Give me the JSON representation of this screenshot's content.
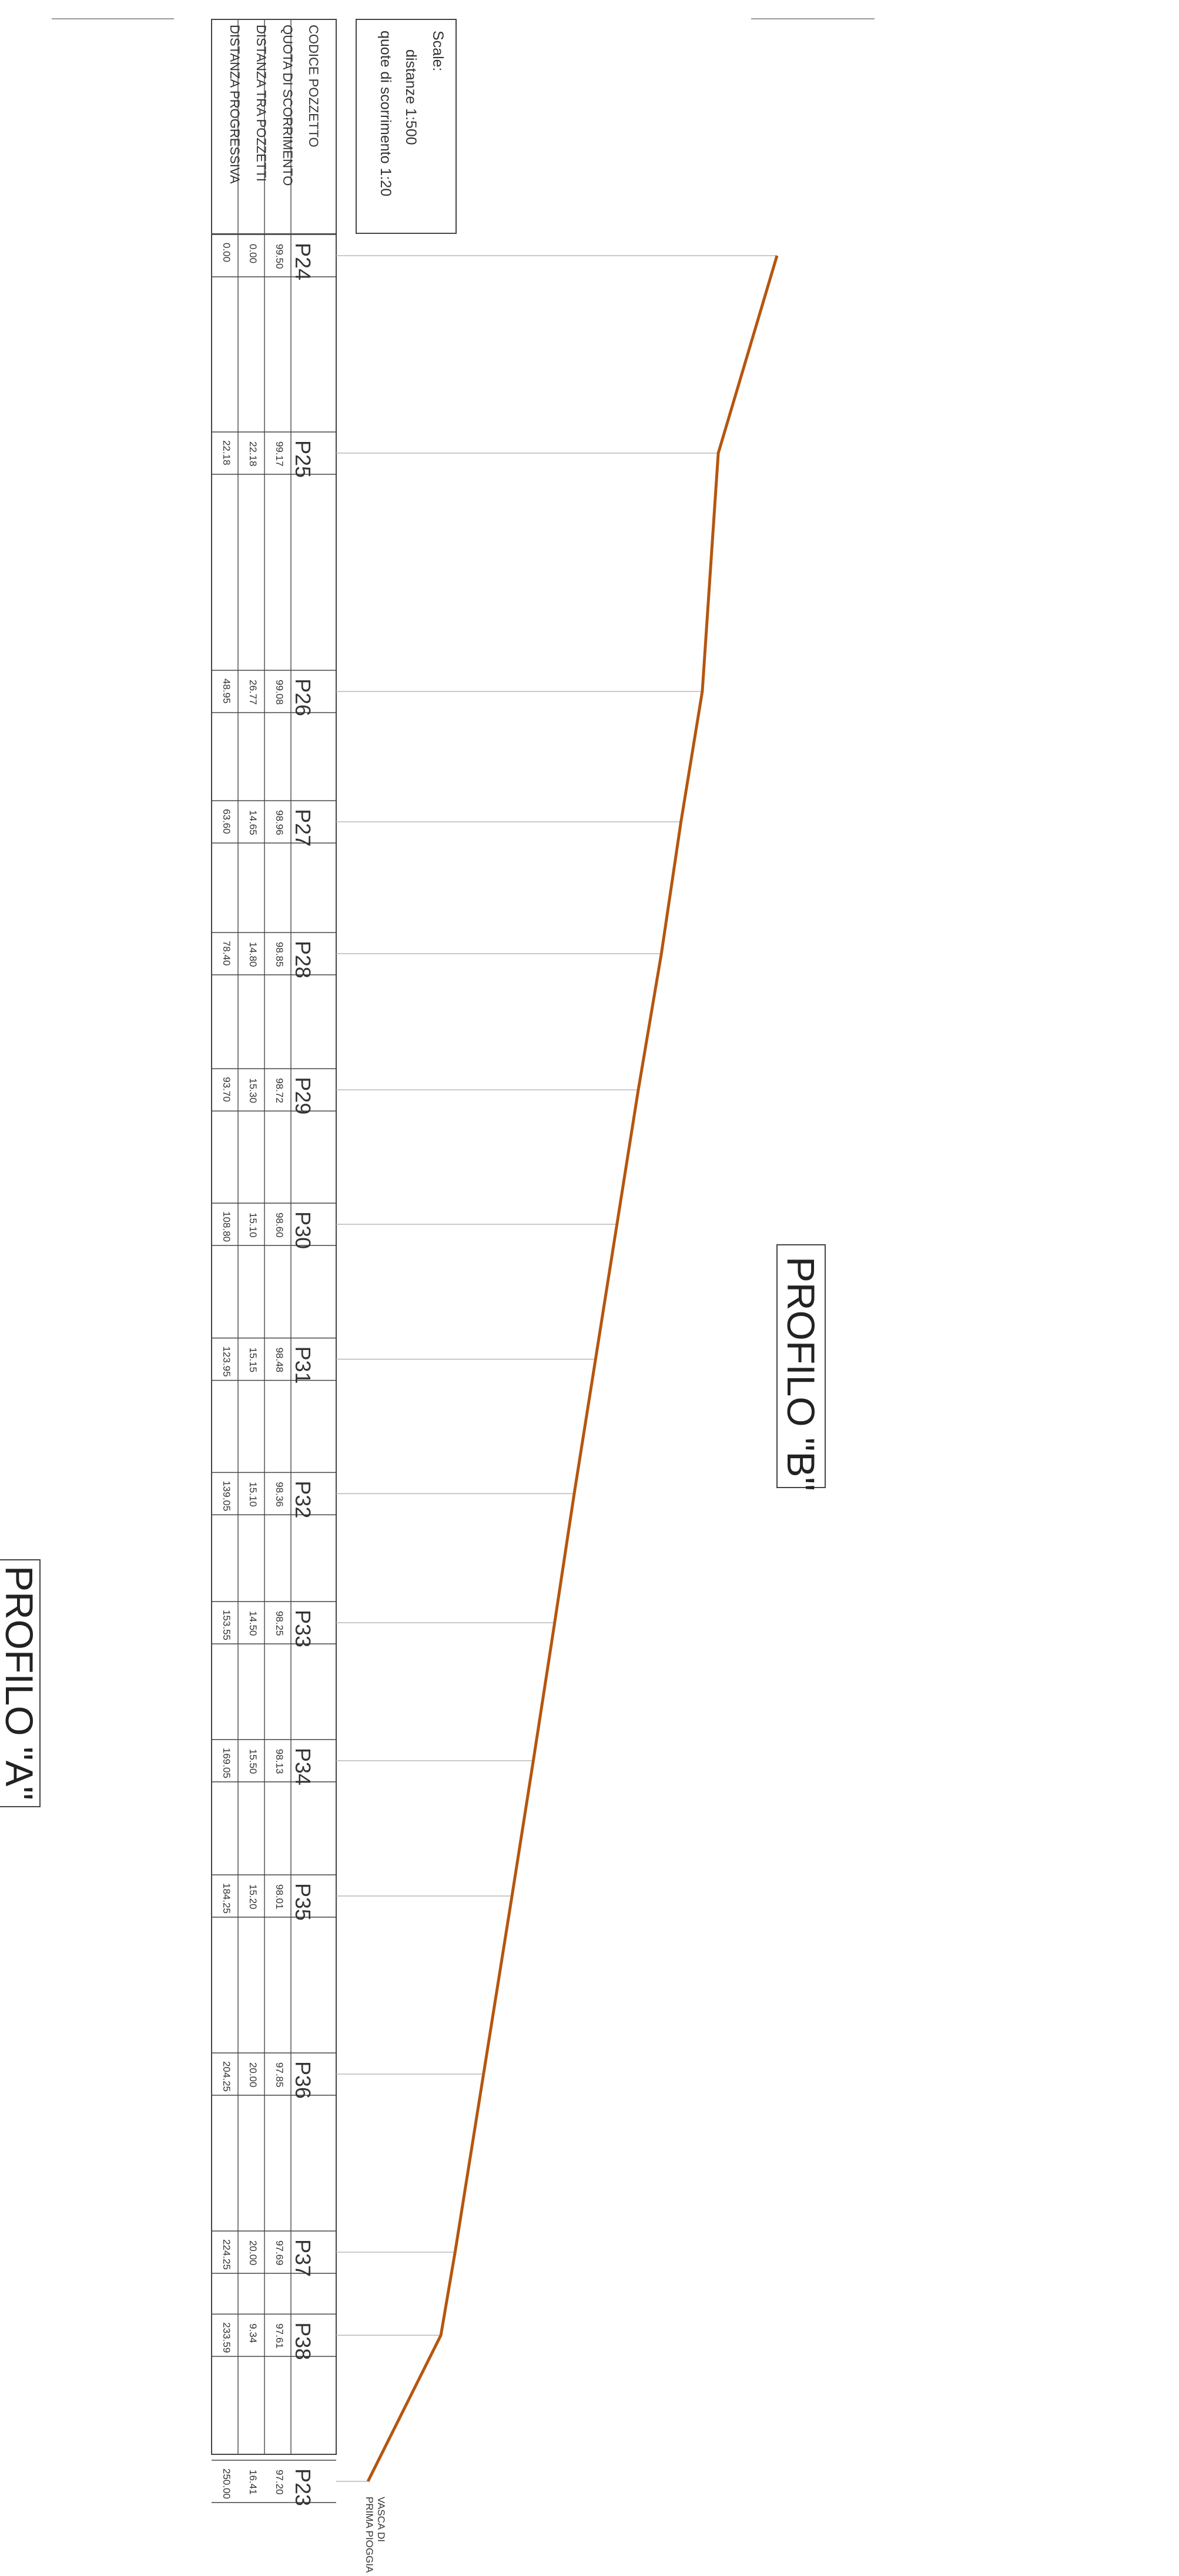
{
  "title_a": "PROFILO \"A\"",
  "title_b": "PROFILO \"B\"",
  "scales": {
    "heading": "Scale:",
    "distances": "distanze 1:500",
    "elevations": "quote di scorrimento 1:20"
  },
  "row_labels": {
    "codice": "CODICE POZZETTO",
    "quota": "QUOTA DI SCORRIMENTO",
    "distanza": "DISTANZA TRA POZZETTI",
    "progressiva": "DISTANZA PROGRESSIVA"
  },
  "end_note": [
    "VASCA DI",
    "PRIMA PIOGGIA"
  ],
  "colors": {
    "profile_line": "#b5560f",
    "grid": "#444444",
    "guide": "#b8b8b8"
  },
  "chart_data": {
    "type": "line",
    "x_field": "distanza_progressiva",
    "y_field": "quota_di_scorrimento",
    "wells": [
      {
        "code": "P24",
        "quota": "99.50",
        "distanza": "0.00",
        "progressiva": "0.00",
        "x": 0.0,
        "y": 99.5
      },
      {
        "code": "P25",
        "quota": "99.17",
        "distanza": "22.18",
        "progressiva": "22.18",
        "x": 22.18,
        "y": 99.17
      },
      {
        "code": "P26",
        "quota": "99.08",
        "distanza": "26.77",
        "progressiva": "48.95",
        "x": 48.95,
        "y": 99.08
      },
      {
        "code": "P27",
        "quota": "98.96",
        "distanza": "14.65",
        "progressiva": "63.60",
        "x": 63.6,
        "y": 98.96
      },
      {
        "code": "P28",
        "quota": "98.85",
        "distanza": "14.80",
        "progressiva": "78.40",
        "x": 78.4,
        "y": 98.85
      },
      {
        "code": "P29",
        "quota": "98.72",
        "distanza": "15.30",
        "progressiva": "93.70",
        "x": 93.7,
        "y": 98.72
      },
      {
        "code": "P30",
        "quota": "98.60",
        "distanza": "15.10",
        "progressiva": "108.80",
        "x": 108.8,
        "y": 98.6
      },
      {
        "code": "P31",
        "quota": "98.48",
        "distanza": "15.15",
        "progressiva": "123.95",
        "x": 123.95,
        "y": 98.48
      },
      {
        "code": "P32",
        "quota": "98.36",
        "distanza": "15.10",
        "progressiva": "139.05",
        "x": 139.05,
        "y": 98.36
      },
      {
        "code": "P33",
        "quota": "98.25",
        "distanza": "14.50",
        "progressiva": "153.55",
        "x": 153.55,
        "y": 98.25
      },
      {
        "code": "P34",
        "quota": "98.13",
        "distanza": "15.50",
        "progressiva": "169.05",
        "x": 169.05,
        "y": 98.13
      },
      {
        "code": "P35",
        "quota": "98.01",
        "distanza": "15.20",
        "progressiva": "184.25",
        "x": 184.25,
        "y": 98.01
      },
      {
        "code": "P36",
        "quota": "97.85",
        "distanza": "20.00",
        "progressiva": "204.25",
        "x": 204.25,
        "y": 97.85
      },
      {
        "code": "P37",
        "quota": "97.69",
        "distanza": "20.00",
        "progressiva": "224.25",
        "x": 224.25,
        "y": 97.69
      },
      {
        "code": "P38",
        "quota": "97.61",
        "distanza": "9.34",
        "progressiva": "233.59",
        "x": 233.59,
        "y": 97.61
      },
      {
        "code": "P23",
        "quota": "97.20",
        "distanza": "16.41",
        "progressiva": "250.00",
        "x": 250.0,
        "y": 97.2
      }
    ]
  }
}
